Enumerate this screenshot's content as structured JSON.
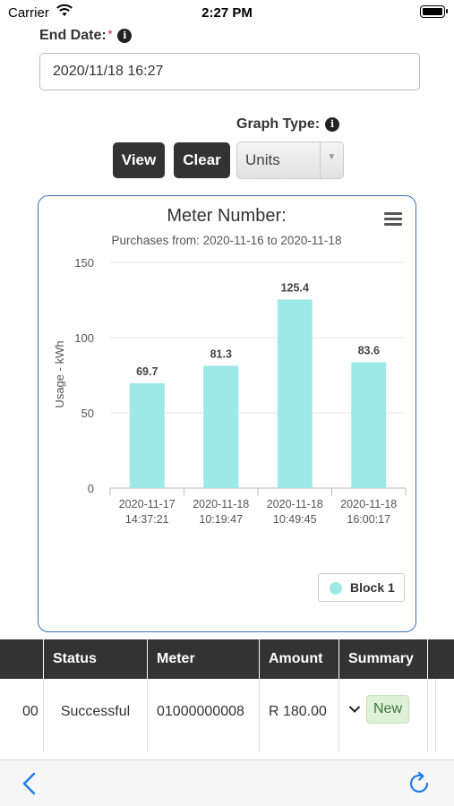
{
  "status_bar": {
    "carrier": "Carrier",
    "time": "2:27 PM"
  },
  "form": {
    "end_date_label": "End Date:",
    "required_mark": "*",
    "end_date_value": "2020/11/18 16:27",
    "graph_type_label": "Graph Type:",
    "view_button": "View",
    "clear_button": "Clear",
    "graph_type_selected": "Units"
  },
  "chart_data": {
    "type": "bar",
    "title": "Meter Number:",
    "subtitle": "Purchases from: 2020-11-16 to 2020-11-18",
    "ylabel": "Usage - kWh",
    "ylim": [
      0,
      150
    ],
    "yticks": [
      0,
      50,
      100,
      150
    ],
    "categories": [
      [
        "2020-11-17",
        "14:37:21"
      ],
      [
        "2020-11-18",
        "10:19:47"
      ],
      [
        "2020-11-18",
        "10:49:45"
      ],
      [
        "2020-11-18",
        "16:00:17"
      ]
    ],
    "series": [
      {
        "name": "Block 1",
        "values": [
          69.7,
          81.3,
          125.4,
          83.6
        ],
        "color": "#9de8e8"
      }
    ],
    "grid": true,
    "legend": "bottom-right"
  },
  "table": {
    "columns": [
      "Status",
      "Meter",
      "Amount",
      "Summary"
    ],
    "row": {
      "partial_prev": "00",
      "status": "Successful",
      "meter": "01000000008",
      "amount": "R 180.00",
      "badge": "New"
    }
  },
  "colors": {
    "bar": "#9de8e8",
    "header_bg": "#333333",
    "chart_border": "#3a6fbf",
    "ios_blue": "#1b7cf0",
    "badge_bg": "#dff0d8"
  }
}
